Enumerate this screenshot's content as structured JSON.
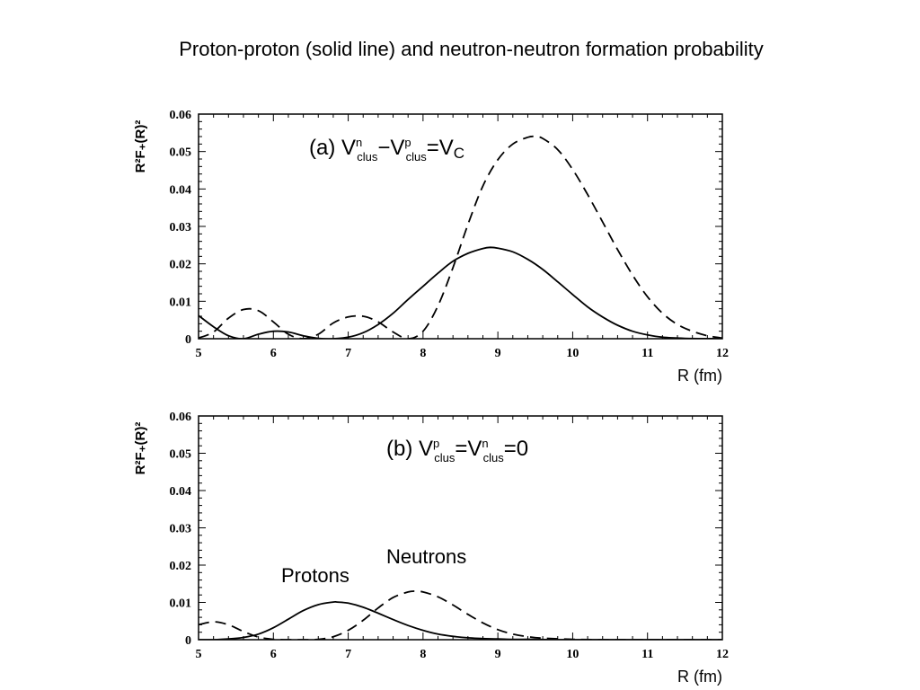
{
  "title": "Proton-proton (solid line) and neutron-neutron formation probability",
  "chart_data": [
    {
      "type": "line",
      "panel": "a",
      "label": {
        "prefix": "(a) V",
        "t1sup": "n",
        "t1sub": "clus",
        "minus": "−V",
        "t2sup": "p",
        "t2sub": "clus",
        "eq": "=V",
        "t3sub": "C"
      },
      "xlabel": "R (fm)",
      "ylabel": "R²F₊(R)²",
      "xlim": [
        5,
        12
      ],
      "ylim": [
        0,
        0.06
      ],
      "xticks": [
        "5",
        "6",
        "7",
        "8",
        "9",
        "10",
        "11",
        "12"
      ],
      "yticks": [
        "0",
        "0.01",
        "0.02",
        "0.03",
        "0.04",
        "0.05",
        "0.06"
      ],
      "series": [
        {
          "style": "solid",
          "x": [
            5.0,
            5.2,
            5.4,
            5.6,
            5.8,
            6.0,
            6.2,
            6.4,
            6.6,
            6.8,
            7.0,
            7.2,
            7.4,
            7.6,
            7.8,
            8.0,
            8.2,
            8.4,
            8.6,
            8.8,
            8.9,
            9.0,
            9.2,
            9.4,
            9.6,
            9.8,
            10.0,
            10.2,
            10.4,
            10.6,
            10.8,
            11.0,
            11.2,
            11.5,
            12.0
          ],
          "y": [
            0.0062,
            0.0032,
            0.0008,
            0.0,
            0.0012,
            0.002,
            0.0018,
            0.0008,
            0.0001,
            0.0,
            0.0004,
            0.0016,
            0.0038,
            0.0068,
            0.0105,
            0.014,
            0.0175,
            0.0207,
            0.0228,
            0.0241,
            0.0244,
            0.0242,
            0.0232,
            0.0212,
            0.0185,
            0.0152,
            0.0118,
            0.0085,
            0.0058,
            0.0036,
            0.002,
            0.001,
            0.0004,
            0.0001,
            0.0
          ]
        },
        {
          "style": "dashed",
          "x": [
            5.0,
            5.2,
            5.4,
            5.6,
            5.8,
            6.0,
            6.2,
            6.4,
            6.6,
            6.8,
            7.0,
            7.2,
            7.4,
            7.6,
            7.8,
            8.0,
            8.2,
            8.4,
            8.6,
            8.8,
            9.0,
            9.2,
            9.4,
            9.5,
            9.6,
            9.8,
            10.0,
            10.2,
            10.4,
            10.6,
            10.8,
            11.0,
            11.2,
            11.4,
            11.6,
            11.8,
            12.0
          ],
          "y": [
            0.0002,
            0.0018,
            0.0055,
            0.0078,
            0.0075,
            0.0045,
            0.0012,
            0.0,
            0.0012,
            0.0042,
            0.0058,
            0.006,
            0.0045,
            0.0018,
            0.0,
            0.002,
            0.0088,
            0.019,
            0.0305,
            0.0408,
            0.0478,
            0.052,
            0.0538,
            0.054,
            0.0535,
            0.0505,
            0.0452,
            0.0385,
            0.0312,
            0.0238,
            0.017,
            0.0112,
            0.0068,
            0.0038,
            0.002,
            0.0008,
            0.0002
          ]
        }
      ]
    },
    {
      "type": "line",
      "panel": "b",
      "label": {
        "prefix": "(b) V",
        "t1sup": "p",
        "t1sub": "clus",
        "eq": "=V",
        "t2sup": "n",
        "t2sub": "clus",
        "tail": "=0"
      },
      "xlabel": "R (fm)",
      "ylabel": "R²F₊(R)²",
      "xlim": [
        5,
        12
      ],
      "ylim": [
        0,
        0.06
      ],
      "xticks": [
        "5",
        "6",
        "7",
        "8",
        "9",
        "10",
        "11",
        "12"
      ],
      "yticks": [
        "0",
        "0.01",
        "0.02",
        "0.03",
        "0.04",
        "0.05",
        "0.06"
      ],
      "annotations": [
        "Protons",
        "Neutrons"
      ],
      "series": [
        {
          "name": "Protons",
          "style": "solid",
          "x": [
            5.0,
            5.2,
            5.4,
            5.6,
            5.8,
            6.0,
            6.2,
            6.4,
            6.6,
            6.8,
            6.85,
            7.0,
            7.2,
            7.4,
            7.6,
            7.8,
            8.0,
            8.2,
            8.4,
            8.6,
            8.8,
            9.0,
            9.2,
            9.5,
            10.0,
            12.0
          ],
          "y": [
            0.0,
            0.0,
            0.0002,
            0.0006,
            0.0015,
            0.0032,
            0.0055,
            0.0078,
            0.0094,
            0.0101,
            0.0101,
            0.0098,
            0.0087,
            0.0071,
            0.0054,
            0.0038,
            0.0025,
            0.0015,
            0.0009,
            0.0005,
            0.0003,
            0.0002,
            0.0001,
            0.0001,
            0.0,
            0.0
          ]
        },
        {
          "name": "Neutrons",
          "style": "dashed",
          "x": [
            5.0,
            5.2,
            5.4,
            5.6,
            5.8,
            6.0,
            6.2,
            6.4,
            6.6,
            6.8,
            7.0,
            7.2,
            7.4,
            7.6,
            7.8,
            7.9,
            8.0,
            8.2,
            8.4,
            8.6,
            8.8,
            9.0,
            9.2,
            9.4,
            9.6,
            10.0,
            10.5,
            12.0
          ],
          "y": [
            0.004,
            0.0048,
            0.004,
            0.0022,
            0.0007,
            0.0001,
            0.0,
            0.0,
            0.0001,
            0.0008,
            0.0025,
            0.0052,
            0.0085,
            0.0113,
            0.0128,
            0.013,
            0.0128,
            0.0115,
            0.0093,
            0.0068,
            0.0045,
            0.0027,
            0.0015,
            0.0008,
            0.0004,
            0.0001,
            0.0,
            0.0
          ]
        }
      ]
    }
  ]
}
